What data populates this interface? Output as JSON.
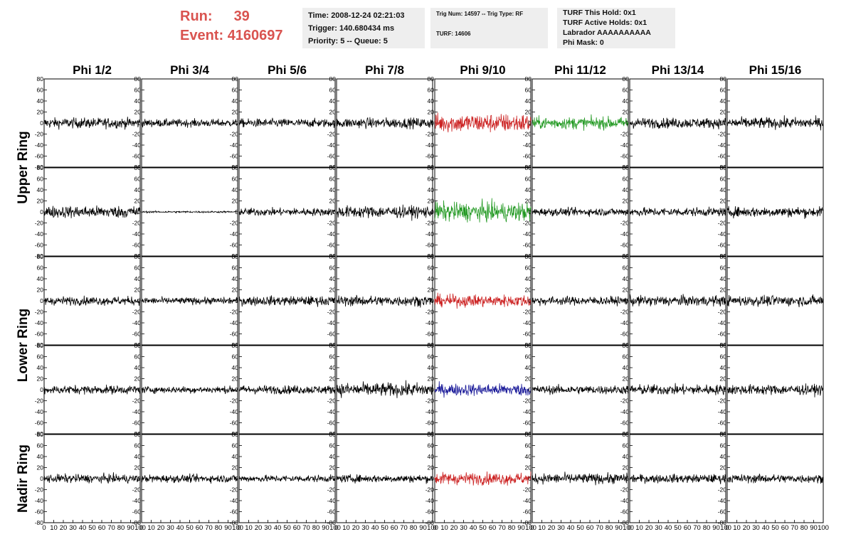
{
  "run_info": {
    "run_label": "Run:",
    "run_value": "39",
    "event_label": "Event:",
    "event_value": "4160697"
  },
  "time_box": {
    "time": "Time: 2008-12-24 02:21:03",
    "trigger": "Trigger: 140.680434 ms",
    "priority": "Priority: 5 -- Queue: 5"
  },
  "trig_box": {
    "trig": "Trig Num: 14597 -- Trig Type: RF",
    "turf": "TURF: 14606"
  },
  "turf_box": {
    "this_hold": "TURF This Hold: 0x1",
    "active_holds": "TURF Active Holds: 0x1",
    "labrador": "Labrador AAAAAAAAAA",
    "phi_mask": "Phi Mask: 0"
  },
  "colors": {
    "normal": "#000000",
    "red": "#cc2222",
    "green": "#229922",
    "blue": "#1a1a99",
    "title": "#d9534f"
  },
  "chart_data": {
    "type": "line",
    "column_titles": [
      "Phi 1/2",
      "Phi 3/4",
      "Phi 5/6",
      "Phi 7/8",
      "Phi 9/10",
      "Phi 11/12",
      "Phi 13/14",
      "Phi 15/16"
    ],
    "ring_labels": [
      "Upper Ring",
      "Lower Ring",
      "Nadir Ring"
    ],
    "ring_row_spans": [
      [
        0,
        1
      ],
      [
        2,
        3
      ],
      [
        4,
        4
      ]
    ],
    "rows": 5,
    "ylim": [
      -80,
      80
    ],
    "yticks": [
      -80,
      -60,
      -40,
      -20,
      0,
      20,
      40,
      60,
      80
    ],
    "xlim": [
      0,
      100
    ],
    "xticks": [
      0,
      10,
      20,
      30,
      40,
      50,
      60,
      70,
      80,
      90,
      100
    ],
    "samples_per_trace": 260,
    "trace_amplitude": [
      [
        12,
        9,
        10,
        12,
        22,
        14,
        12,
        13
      ],
      [
        14,
        2,
        9,
        14,
        22,
        9,
        10,
        12
      ],
      [
        10,
        8,
        11,
        12,
        14,
        10,
        12,
        12
      ],
      [
        10,
        8,
        10,
        16,
        14,
        10,
        12,
        12
      ],
      [
        10,
        9,
        8,
        9,
        14,
        12,
        10,
        10
      ]
    ],
    "trace_color": [
      [
        "normal",
        "normal",
        "normal",
        "normal",
        "red",
        "green",
        "normal",
        "normal"
      ],
      [
        "normal",
        "normal",
        "normal",
        "normal",
        "green",
        "normal",
        "normal",
        "normal"
      ],
      [
        "normal",
        "normal",
        "normal",
        "normal",
        "red",
        "normal",
        "normal",
        "normal"
      ],
      [
        "normal",
        "normal",
        "normal",
        "normal",
        "blue",
        "normal",
        "normal",
        "normal"
      ],
      [
        "normal",
        "normal",
        "normal",
        "normal",
        "red",
        "normal",
        "normal",
        "normal"
      ]
    ]
  }
}
